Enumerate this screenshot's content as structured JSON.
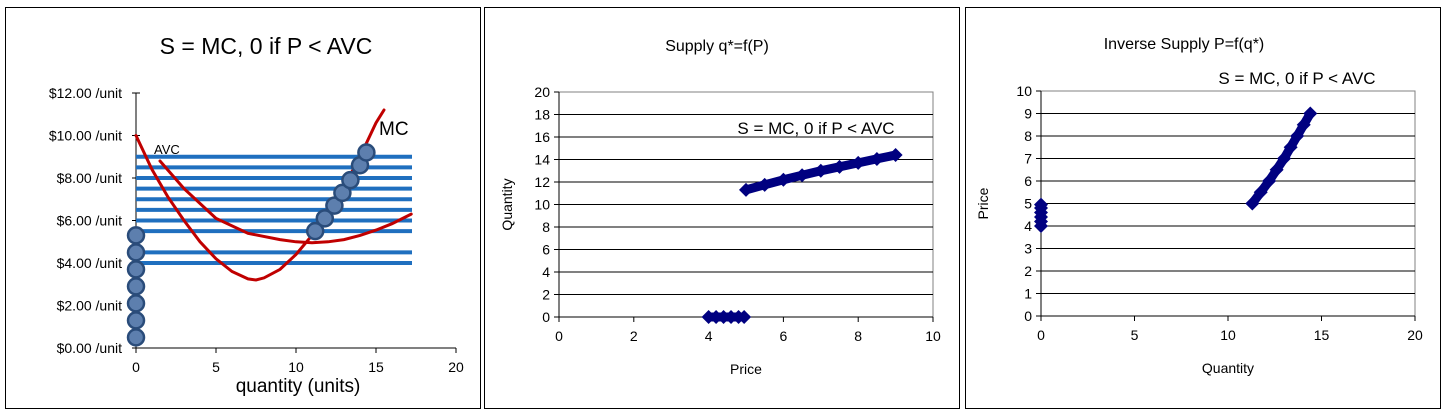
{
  "chart_data": [
    {
      "type": "line",
      "title": "S = MC, 0 if P < AVC",
      "xlabel": "quantity (units)",
      "ylabel": "",
      "xlim": [
        0,
        20
      ],
      "ylim": [
        0,
        12
      ],
      "x_ticks": [
        "0",
        "5",
        "10",
        "15",
        "20"
      ],
      "y_ticks": [
        "$0.00 /unit",
        "$2.00 /unit",
        "$4.00 /unit",
        "$6.00 /unit",
        "$8.00 /unit",
        "$10.00 /unit",
        "$12.00 /unit"
      ],
      "series": [
        {
          "name": "MC",
          "color": "#c00000",
          "x": [
            0,
            1,
            2,
            3,
            4,
            5,
            6,
            7,
            7.5,
            8,
            9,
            10,
            11,
            12,
            13,
            14,
            15,
            15.5
          ],
          "y": [
            10,
            8.4,
            7.1,
            6,
            5,
            4.2,
            3.6,
            3.25,
            3.2,
            3.3,
            3.7,
            4.4,
            5.3,
            6.4,
            7.6,
            9,
            10.6,
            11.2
          ]
        },
        {
          "name": "AVC",
          "color": "#c00000",
          "x": [
            1.5,
            3,
            5,
            7,
            9,
            10,
            11,
            12,
            13,
            14,
            15,
            16,
            17.2
          ],
          "y": [
            8.8,
            7.5,
            6.1,
            5.4,
            5.1,
            5.0,
            4.95,
            5.0,
            5.1,
            5.3,
            5.55,
            5.85,
            6.3
          ]
        }
      ],
      "price_lines": [
        4.0,
        4.5,
        5.5,
        6.0,
        6.5,
        7.0,
        7.5,
        8.0,
        8.5,
        9.0
      ],
      "supply_points": [
        {
          "x": 0,
          "y": 0.5
        },
        {
          "x": 0,
          "y": 1.3
        },
        {
          "x": 0,
          "y": 2.1
        },
        {
          "x": 0,
          "y": 2.9
        },
        {
          "x": 0,
          "y": 3.7
        },
        {
          "x": 0,
          "y": 4.5
        },
        {
          "x": 0,
          "y": 5.3
        },
        {
          "x": 11.2,
          "y": 5.5
        },
        {
          "x": 11.8,
          "y": 6.1
        },
        {
          "x": 12.4,
          "y": 6.7
        },
        {
          "x": 12.9,
          "y": 7.3
        },
        {
          "x": 13.4,
          "y": 7.9
        },
        {
          "x": 14.0,
          "y": 8.6
        },
        {
          "x": 14.4,
          "y": 9.2
        }
      ],
      "annotations": [
        "MC",
        "AVC"
      ]
    },
    {
      "type": "scatter",
      "title": "Supply q*=f(P)",
      "xlabel": "Price",
      "ylabel": "Quantity",
      "xlim": [
        0,
        10
      ],
      "ylim": [
        0,
        20
      ],
      "x_ticks": [
        0,
        2,
        4,
        6,
        8,
        10
      ],
      "y_ticks": [
        0,
        2,
        4,
        6,
        8,
        10,
        12,
        14,
        16,
        18,
        20
      ],
      "grid": "horizontal",
      "series": [
        {
          "color": "#000080",
          "x": [
            4,
            4.2,
            4.4,
            4.6,
            4.8,
            4.95
          ],
          "y": [
            0,
            0,
            0,
            0,
            0,
            0
          ]
        },
        {
          "color": "#000080",
          "x": [
            5,
            5.5,
            6,
            6.5,
            7,
            7.5,
            8,
            8.5,
            9
          ],
          "y": [
            11.3,
            11.75,
            12.2,
            12.6,
            13.0,
            13.35,
            13.7,
            14.05,
            14.4
          ]
        }
      ],
      "annotations": [
        "S = MC, 0 if P < AVC"
      ]
    },
    {
      "type": "scatter",
      "title": "Inverse Supply P=f(q*)",
      "xlabel": "Quantity",
      "ylabel": "Price",
      "xlim": [
        0,
        20
      ],
      "ylim": [
        0,
        10
      ],
      "x_ticks": [
        0,
        5,
        10,
        15,
        20
      ],
      "y_ticks": [
        0,
        1,
        2,
        3,
        4,
        5,
        6,
        7,
        8,
        9,
        10
      ],
      "grid": "horizontal",
      "series": [
        {
          "color": "#000080",
          "x": [
            0,
            0,
            0,
            0,
            0,
            0
          ],
          "y": [
            4.0,
            4.2,
            4.4,
            4.6,
            4.8,
            4.95
          ]
        },
        {
          "color": "#000080",
          "x": [
            11.3,
            11.75,
            12.2,
            12.6,
            13.0,
            13.35,
            13.7,
            14.05,
            14.4
          ],
          "y": [
            5,
            5.5,
            6,
            6.5,
            7,
            7.5,
            8,
            8.5,
            9
          ]
        }
      ],
      "annotations": [
        "S = MC, 0 if P < AVC"
      ]
    }
  ]
}
